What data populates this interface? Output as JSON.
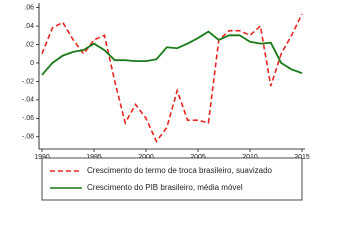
{
  "chart_data": {
    "type": "line",
    "x": [
      1990,
      1991,
      1992,
      1993,
      1994,
      1995,
      1996,
      1997,
      1998,
      1999,
      2000,
      2001,
      2002,
      2003,
      2004,
      2005,
      2006,
      2007,
      2008,
      2009,
      2010,
      2011,
      2012,
      2013,
      2014,
      2015
    ],
    "series": [
      {
        "name": "Crescimento do termo de troca brasileiro, suavizado",
        "color": "#e8251f",
        "dash": true,
        "values": [
          0.01,
          0.038,
          0.044,
          0.025,
          0.01,
          0.025,
          0.03,
          -0.02,
          -0.065,
          -0.045,
          -0.06,
          -0.085,
          -0.07,
          -0.03,
          -0.062,
          -0.062,
          -0.065,
          0.025,
          0.035,
          0.035,
          0.03,
          0.04,
          -0.025,
          0.01,
          0.03,
          0.053
        ]
      },
      {
        "name": "Crescimento do PIB brasileiro, média móvel",
        "color": "#1a7a1a",
        "dash": false,
        "values": [
          -0.013,
          0.0,
          0.008,
          0.012,
          0.014,
          0.021,
          0.014,
          0.003,
          0.003,
          0.002,
          0.002,
          0.004,
          0.017,
          0.016,
          0.021,
          0.027,
          0.034,
          0.025,
          0.03,
          0.03,
          0.023,
          0.021,
          0.022,
          0.0,
          -0.007,
          -0.011
        ]
      }
    ],
    "xlim": [
      1990,
      2015
    ],
    "xticks": [
      1990,
      1995,
      2000,
      2005,
      2010,
      2015
    ],
    "ylim": [
      -0.09,
      0.065
    ],
    "yticks": [
      {
        "value": 0.06,
        "label": ".06"
      },
      {
        "value": 0.04,
        "label": ".04"
      },
      {
        "value": 0.02,
        "label": ".02"
      },
      0,
      {
        "value": -0.02,
        "label": "-.02"
      },
      {
        "value": -0.04,
        "label": "-.04"
      },
      {
        "value": -0.06,
        "label": "-.06"
      },
      {
        "value": -0.08,
        "label": "-.08"
      }
    ],
    "grid": false
  }
}
